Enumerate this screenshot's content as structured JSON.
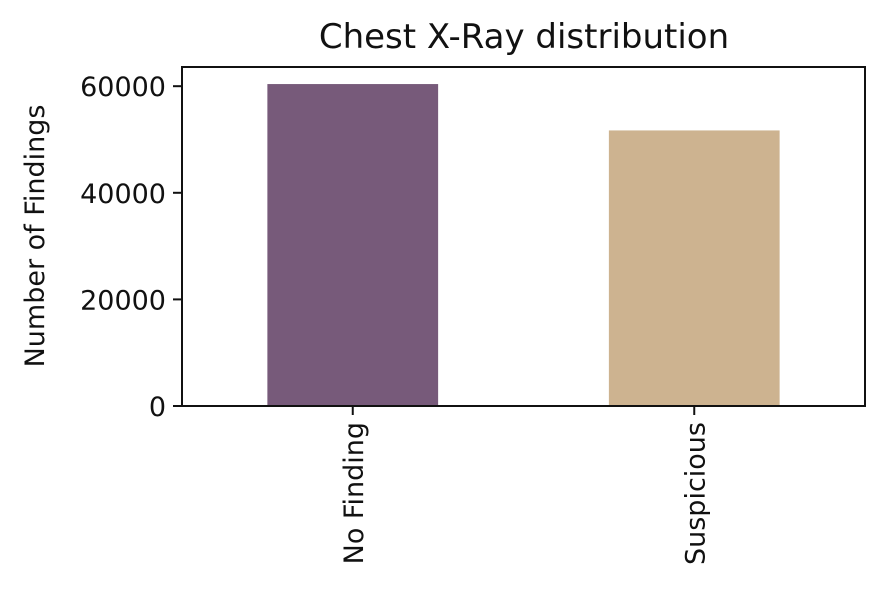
{
  "chart_data": {
    "type": "bar",
    "title": "Chest X-Ray distribution",
    "xlabel": "",
    "ylabel": "Number of Findings",
    "categories": [
      "No Finding",
      "Suspicious"
    ],
    "values": [
      60400,
      51700
    ],
    "colors": [
      "#775a7a",
      "#cdb390"
    ],
    "ylim": [
      0,
      63600
    ],
    "yticks": [
      0,
      20000,
      40000,
      60000
    ],
    "ytick_labels": [
      "0",
      "20000",
      "40000",
      "60000"
    ],
    "grid": false,
    "legend": "none",
    "x_tick_rotation": "vertical"
  }
}
